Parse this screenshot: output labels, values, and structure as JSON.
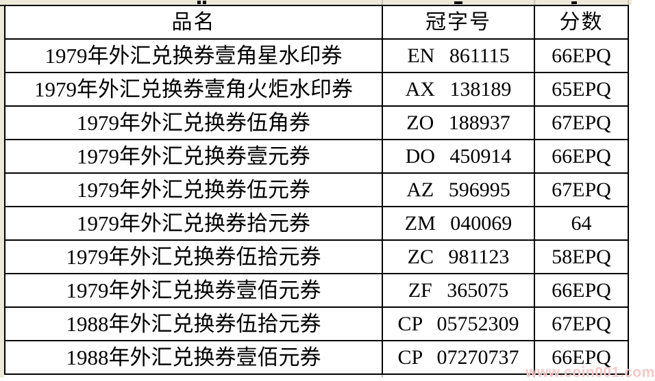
{
  "colors": {
    "page_margin": "#ece9d8",
    "cell_background": "#ffffff",
    "table_border": "#000000",
    "text": "#000000",
    "watermark": "#f7c7c7"
  },
  "table": {
    "headers": {
      "name": "品名",
      "serial": "冠字号",
      "score": "分数"
    },
    "rows": [
      {
        "name": "1979年外汇兑换券壹角星水印券",
        "serial": "EN 861115",
        "score": "66EPQ"
      },
      {
        "name": "1979年外汇兑换券壹角火炬水印券",
        "serial": "AX 138189",
        "score": "65EPQ"
      },
      {
        "name": "1979年外汇兑换券伍角券",
        "serial": "ZO 188937",
        "score": "67EPQ"
      },
      {
        "name": "1979年外汇兑换券壹元券",
        "serial": "DO 450914",
        "score": "66EPQ"
      },
      {
        "name": "1979年外汇兑换券伍元券",
        "serial": "AZ 596995",
        "score": "67EPQ"
      },
      {
        "name": "1979年外汇兑换券拾元券",
        "serial": "ZM 040069",
        "score": "64"
      },
      {
        "name": "1979年外汇兑换券伍拾元券",
        "serial": "ZC 981123",
        "score": "58EPQ"
      },
      {
        "name": "1979年外汇兑换券壹佰元券",
        "serial": "ZF 365075",
        "score": "66EPQ"
      },
      {
        "name": "1988年外汇兑换券伍拾元券",
        "serial": "CP 05752309",
        "score": "67EPQ"
      },
      {
        "name": "1988年外汇兑换券壹佰元券",
        "serial": "CP 07270737",
        "score": "66EPQ"
      }
    ]
  },
  "watermark": {
    "text": "www.coin001.com"
  }
}
